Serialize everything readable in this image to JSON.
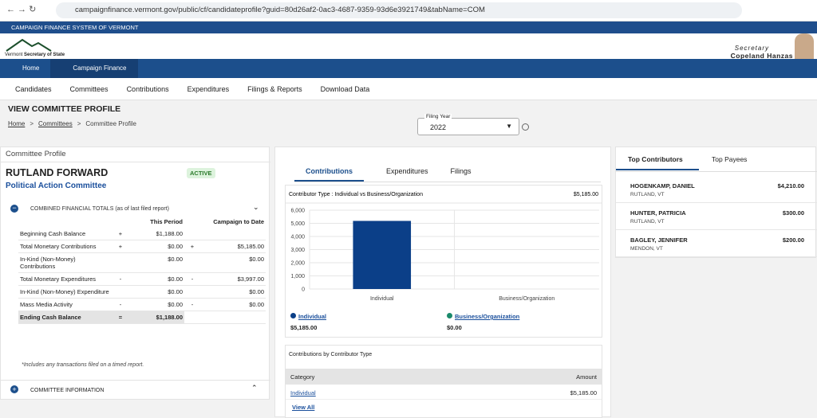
{
  "browser": {
    "url": "campaignfinance.vermont.gov/public/cf/candidateprofile?guid=80d26af2-0ac3-4687-9359-93d6e3921749&tabName=COM"
  },
  "header": {
    "system_title": "CAMPAIGN FINANCE SYSTEM OF VERMONT",
    "logo_state": "Vermont",
    "logo_office": "Secretary of State",
    "secretary_title": "Secretary",
    "secretary_name": "Copeland Hanzas"
  },
  "nav": {
    "primary": [
      "Home",
      "Campaign Finance"
    ],
    "secondary": [
      "Candidates",
      "Committees",
      "Contributions",
      "Expenditures",
      "Filings & Reports",
      "Download Data"
    ]
  },
  "page": {
    "title": "VIEW COMMITTEE PROFILE",
    "breadcrumb": [
      "Home",
      "Committees",
      "Committee Profile"
    ],
    "filing_year_label": "Filing Year",
    "filing_year": "2022"
  },
  "profile": {
    "panel_title": "Committee Profile",
    "name": "RUTLAND FORWARD",
    "status": "ACTIVE",
    "committee_type": "Political Action Committee",
    "totals_title": "COMBINED FINANCIAL TOTALS (as of last filed report)",
    "col_headers": [
      "This Period",
      "Campaign to Date"
    ],
    "rows": [
      {
        "label": "Beginning Cash Balance",
        "sign1": "+",
        "period": "$1,188.00"
      },
      {
        "label": "Total Monetary Contributions",
        "sign1": "+",
        "period": "$0.00",
        "sign2": "+",
        "to_date": "$5,185.00"
      },
      {
        "label": "In-Kind (Non-Money) Contributions",
        "period": "$0.00",
        "to_date": "$0.00"
      },
      {
        "label": "Total Monetary Expenditures",
        "sign1": "-",
        "period": "$0.00",
        "sign2": "-",
        "to_date": "$3,997.00"
      },
      {
        "label": "In-Kind (Non-Money) Expenditure",
        "period": "$0.00",
        "to_date": "$0.00"
      },
      {
        "label": "Mass Media Activity",
        "sign1": "-",
        "period": "$0.00",
        "sign2": "-",
        "to_date": "$0.00"
      },
      {
        "label": "Ending Cash Balance",
        "sign1": "=",
        "period": "$1,188.00"
      }
    ],
    "footnote": "*Includes any transactions filed on a timed report.",
    "info_title": "COMMITTEE INFORMATION"
  },
  "tabs": [
    "Contributions",
    "Expenditures",
    "Filings"
  ],
  "chart": {
    "type": "bar",
    "title": "Contributor Type : Individual vs Business/Organization",
    "total": "$5,185.00",
    "categories": [
      "Individual",
      "Business/Organization"
    ],
    "values": [
      5185,
      0
    ],
    "value_labels": [
      "$5,185.00",
      "$0.00"
    ],
    "colors": [
      "#0b3f88",
      "#1b8a6b"
    ],
    "ylim": [
      0,
      6000
    ],
    "yticks": [
      0,
      {
        "value": 1000,
        "label": "1,000"
      },
      {
        "value": 2000,
        "label": "2,000"
      },
      {
        "value": 3000,
        "label": "3,000"
      },
      {
        "value": 4000,
        "label": "4,000"
      },
      {
        "value": 5000,
        "label": "5,000"
      },
      {
        "value": 6000,
        "label": "6,000"
      }
    ],
    "grid": true
  },
  "breakdown": {
    "title": "Contributions by Contributor Type",
    "headers": [
      "Category",
      "Amount"
    ],
    "rows": [
      [
        "Individual",
        "$5,185.00"
      ]
    ],
    "view_all": "View All"
  },
  "top": {
    "tabs": [
      "Top Contributors",
      "Top Payees"
    ],
    "contributors": [
      {
        "name": "HOGENKAMP, DANIEL",
        "location": "RUTLAND, VT",
        "amount": "$4,210.00"
      },
      {
        "name": "HUNTER, PATRICIA",
        "location": "RUTLAND, VT",
        "amount": "$300.00"
      },
      {
        "name": "BAGLEY, JENNIFER",
        "location": "MENDON, VT",
        "amount": "$200.00"
      }
    ]
  }
}
